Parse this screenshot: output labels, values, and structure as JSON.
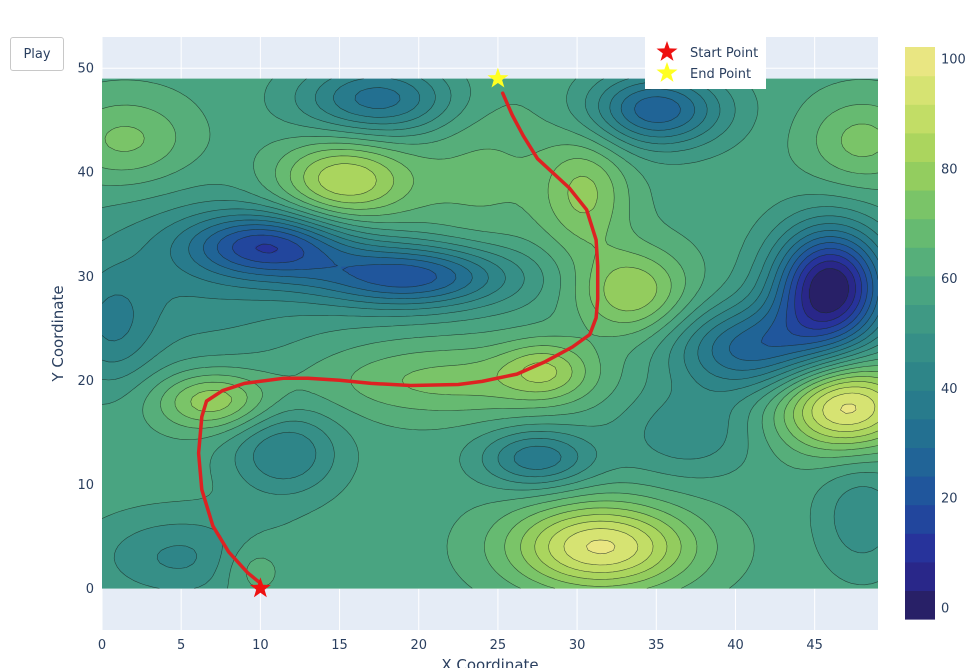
{
  "controls": {
    "play_label": "Play"
  },
  "colors": {
    "plot_bg": "#e5ecf6",
    "grid": "#ffffff",
    "path": "#dd2222",
    "start_marker": "#ee1111",
    "end_marker": "#ffff22",
    "colorscale": [
      "#271d56",
      "#2a2a9a",
      "#1f4f9e",
      "#216b94",
      "#2a8089",
      "#3a9486",
      "#4ea97f",
      "#6ebf6c",
      "#9fd15a",
      "#cde16a",
      "#f2e88a"
    ]
  },
  "chart_data": {
    "type": "contour",
    "xlabel": "X Coordinate",
    "ylabel": "Y Coordinate",
    "xlim": [
      0,
      49
    ],
    "ylim": [
      -4,
      53
    ],
    "x_ticks": [
      0,
      5,
      10,
      15,
      20,
      25,
      30,
      35,
      40,
      45
    ],
    "y_ticks": [
      0,
      10,
      20,
      30,
      40,
      50
    ],
    "z_range": [
      0,
      100
    ],
    "colorbar_ticks": [
      0,
      20,
      40,
      60,
      80,
      100
    ],
    "surface_extent": {
      "x": [
        0,
        49
      ],
      "y": [
        0,
        49
      ]
    },
    "surface": {
      "base": 58,
      "bumps": [
        {
          "x": 15.3,
          "y": 39.2,
          "a": 28,
          "sx": 3,
          "sy": 2.8
        },
        {
          "x": 10.5,
          "y": 33,
          "a": -34,
          "sx": 3.5,
          "sy": 2.2
        },
        {
          "x": 19.5,
          "y": 30,
          "a": -36,
          "sx": 4.5,
          "sy": 2.2
        },
        {
          "x": 6,
          "y": 30,
          "a": -12,
          "sx": 6,
          "sy": 6
        },
        {
          "x": 17.5,
          "y": 47,
          "a": -26,
          "sx": 3.5,
          "sy": 2.5
        },
        {
          "x": 35,
          "y": 46,
          "a": -32,
          "sx": 3,
          "sy": 2.5
        },
        {
          "x": 46,
          "y": 29,
          "a": -58,
          "sx": 2.5,
          "sy": 4
        },
        {
          "x": 41,
          "y": 23,
          "a": -30,
          "sx": 3.5,
          "sy": 3
        },
        {
          "x": 47,
          "y": 17.5,
          "a": 40,
          "sx": 3,
          "sy": 3
        },
        {
          "x": 31.5,
          "y": 4,
          "a": 38,
          "sx": 4,
          "sy": 3
        },
        {
          "x": 5,
          "y": 3,
          "a": -14,
          "sx": 4,
          "sy": 3
        },
        {
          "x": 27.5,
          "y": 12.5,
          "a": -22,
          "sx": 2.5,
          "sy": 2
        },
        {
          "x": 11.5,
          "y": 13,
          "a": -18,
          "sx": 2.5,
          "sy": 3
        },
        {
          "x": 33.5,
          "y": 28.5,
          "a": 22,
          "sx": 2.5,
          "sy": 3
        },
        {
          "x": 30.5,
          "y": 38,
          "a": 18,
          "sx": 2,
          "sy": 4
        },
        {
          "x": 7,
          "y": 18,
          "a": 22,
          "sx": 2.5,
          "sy": 2
        },
        {
          "x": 28,
          "y": 21,
          "a": 16,
          "sx": 2,
          "sy": 2
        },
        {
          "x": 1.5,
          "y": 43,
          "a": 14,
          "sx": 3,
          "sy": 3
        },
        {
          "x": 48,
          "y": 43,
          "a": 14,
          "sx": 2.5,
          "sy": 3
        },
        {
          "x": 22,
          "y": 20,
          "a": 14,
          "sx": 6,
          "sy": 2.5
        },
        {
          "x": 0.5,
          "y": 25,
          "a": -14,
          "sx": 2,
          "sy": 4
        },
        {
          "x": 37,
          "y": 15,
          "a": -12,
          "sx": 3,
          "sy": 3
        },
        {
          "x": 24,
          "y": 40,
          "a": 8,
          "sx": 3,
          "sy": 6
        },
        {
          "x": 48,
          "y": 7,
          "a": -12,
          "sx": 2,
          "sy": 4
        },
        {
          "x": 9.5,
          "y": 2,
          "a": 10,
          "sx": 1.5,
          "sy": 2
        }
      ]
    },
    "series": [
      {
        "name": "",
        "type": "line",
        "points": [
          [
            10,
            0.5
          ],
          [
            9.2,
            1.5
          ],
          [
            8,
            3.5
          ],
          [
            7,
            6
          ],
          [
            6.3,
            9.5
          ],
          [
            6.1,
            13
          ],
          [
            6.3,
            16.5
          ],
          [
            6.6,
            18
          ],
          [
            7.6,
            19
          ],
          [
            9,
            19.7
          ],
          [
            11.5,
            20.2
          ],
          [
            13,
            20.2
          ],
          [
            15,
            20.0
          ],
          [
            17,
            19.7
          ],
          [
            19.5,
            19.5
          ],
          [
            22.5,
            19.6
          ],
          [
            24,
            19.9
          ],
          [
            26.2,
            20.6
          ],
          [
            28,
            21.8
          ],
          [
            29.7,
            23.2
          ],
          [
            30.8,
            24.4
          ],
          [
            31.2,
            26
          ],
          [
            31.3,
            27.8
          ],
          [
            31.3,
            31
          ],
          [
            31.2,
            33.5
          ],
          [
            30.6,
            36.4
          ],
          [
            29.5,
            38.5
          ],
          [
            27.5,
            41.3
          ],
          [
            26.6,
            43.5
          ],
          [
            25.9,
            45.5
          ],
          [
            25.3,
            47.6
          ]
        ]
      },
      {
        "name": "Start Point",
        "type": "marker",
        "symbol": "star",
        "x": 10,
        "y": 0
      },
      {
        "name": "End Point",
        "type": "marker",
        "symbol": "star",
        "x": 25,
        "y": 49
      }
    ],
    "legend": {
      "entries": [
        "Start Point",
        "End Point"
      ],
      "placement": "top"
    }
  }
}
